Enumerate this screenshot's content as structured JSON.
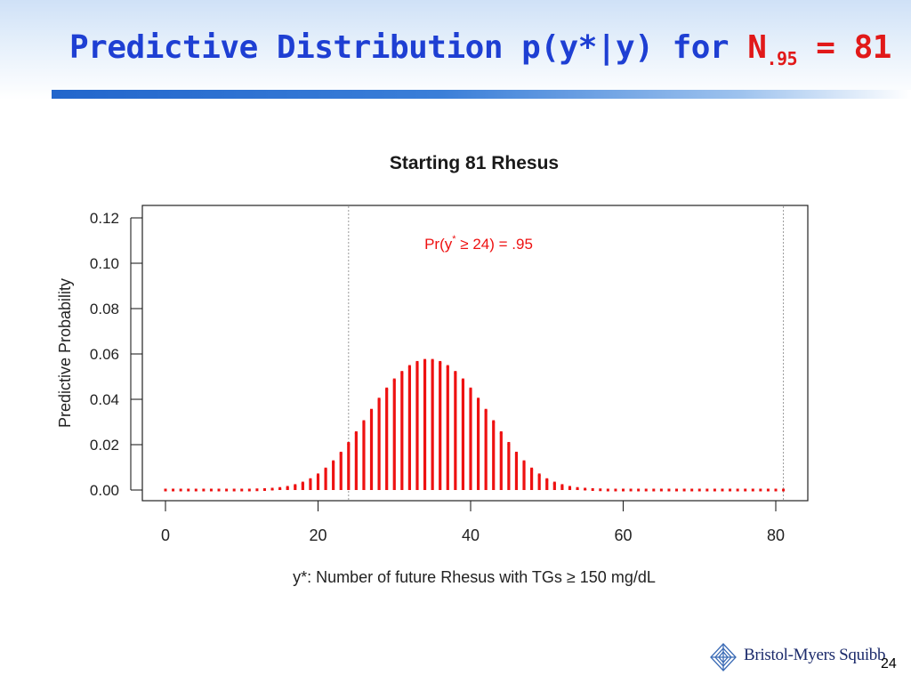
{
  "slide": {
    "title_main": "Predictive Distribution p(y*|y) for ",
    "title_n": "N",
    "title_sub": ".95",
    "title_eq": " = 81",
    "page_number": "24",
    "logo_text": "Bristol-Myers Squibb",
    "colors": {
      "title_blue": "#1e3fd3",
      "title_red": "#e11919",
      "accent_bar": "#2266cc"
    }
  },
  "chart_data": {
    "type": "bar",
    "title": "Starting 81 Rhesus",
    "xlabel": "y*: Number of future Rhesus with TGs ≥ 150 mg/dL",
    "ylabel": "Predictive Probability",
    "xlim": [
      0,
      81
    ],
    "ylim": [
      0,
      0.12
    ],
    "xticks": [
      0,
      20,
      40,
      60,
      80
    ],
    "xtick_labels": [
      "0",
      "20",
      "40",
      "60",
      "80"
    ],
    "yticks": [
      0.0,
      0.02,
      0.04,
      0.06,
      0.08,
      0.1,
      0.12
    ],
    "ytick_labels": [
      "0.00",
      "0.02",
      "0.04",
      "0.06",
      "0.08",
      "0.10",
      "0.12"
    ],
    "grid": false,
    "bar_color": "#ee1111",
    "annotation": {
      "text": "Pr(y* ≥ 24) = .95",
      "color": "#ee1111"
    },
    "reference_lines": [
      24,
      81
    ],
    "x": [
      0,
      1,
      2,
      3,
      4,
      5,
      6,
      7,
      8,
      9,
      10,
      11,
      12,
      13,
      14,
      15,
      16,
      17,
      18,
      19,
      20,
      21,
      22,
      23,
      24,
      25,
      26,
      27,
      28,
      29,
      30,
      31,
      32,
      33,
      34,
      35,
      36,
      37,
      38,
      39,
      40,
      41,
      42,
      43,
      44,
      45,
      46,
      47,
      48,
      49,
      50,
      51,
      52,
      53,
      54,
      55,
      56,
      57,
      58,
      59,
      60,
      61,
      62,
      63,
      64,
      65,
      66,
      67,
      68,
      69,
      70,
      71,
      72,
      73,
      74,
      75,
      76,
      77,
      78,
      79,
      80,
      81
    ],
    "values": [
      0,
      0,
      0,
      0,
      0,
      0,
      0,
      0,
      0,
      0,
      0,
      0,
      0.0001,
      0.0002,
      0.0004,
      0.0007,
      0.0012,
      0.002,
      0.0031,
      0.0046,
      0.0067,
      0.0093,
      0.0125,
      0.0163,
      0.0206,
      0.0253,
      0.0302,
      0.0352,
      0.0401,
      0.0446,
      0.0486,
      0.0519,
      0.0545,
      0.0563,
      0.0572,
      0.0572,
      0.0563,
      0.0545,
      0.0519,
      0.0486,
      0.0446,
      0.0401,
      0.0352,
      0.0302,
      0.0253,
      0.0206,
      0.0163,
      0.0125,
      0.0093,
      0.0067,
      0.0046,
      0.0031,
      0.002,
      0.0012,
      0.0007,
      0.0004,
      0.0002,
      0.0001,
      0,
      0,
      0,
      0,
      0,
      0,
      0,
      0,
      0,
      0,
      0,
      0,
      0,
      0,
      0,
      0,
      0,
      0,
      0,
      0,
      0,
      0,
      0,
      0
    ]
  }
}
